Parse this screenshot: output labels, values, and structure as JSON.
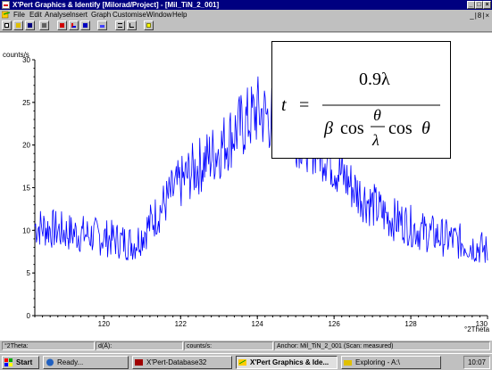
{
  "window": {
    "title": "X'Pert Graphics & Identify [Milorad/Project] - [Mil_TiN_2_001]",
    "controls": [
      "_",
      "□",
      "×"
    ]
  },
  "menu": {
    "items": [
      "File",
      "Edit",
      "Analyse",
      "Insert",
      "Graph",
      "Customise",
      "Window",
      "Help"
    ],
    "mdi_controls": "_|8|×"
  },
  "toolbar": {
    "buttons": [
      "new-icon",
      "open-icon",
      "save-icon",
      "print-icon",
      "peak-icon",
      "profile-icon",
      "alpha2-icon",
      "pattern-icon",
      "list-icon",
      "graph-icon",
      "help-icon"
    ]
  },
  "chart_data": {
    "type": "line",
    "ylabel": "counts/s",
    "xlabel": "°2Theta",
    "xlim": [
      118.2,
      130
    ],
    "ylim": [
      0,
      30
    ],
    "x_ticks": [
      "120",
      "122",
      "124",
      "126",
      "128",
      "130"
    ],
    "y_ticks": [
      "0",
      "5",
      "10",
      "15",
      "20",
      "25",
      "30"
    ],
    "series": [
      {
        "color": "#0000ff",
        "x": [
          118.2,
          118.6,
          119.0,
          119.4,
          119.8,
          120.2,
          120.6,
          120.8,
          121.0,
          121.4,
          121.8,
          122.2,
          122.6,
          123.0,
          123.4,
          123.8,
          124.0,
          124.2,
          124.6,
          125.0,
          125.4,
          125.8,
          126.2,
          126.6,
          127.0,
          127.4,
          127.8,
          128.2,
          128.6,
          129.0,
          129.4,
          129.8,
          130.0
        ],
        "y": [
          10.5,
          10.2,
          9.8,
          9.6,
          9.3,
          9.0,
          8.6,
          8.5,
          9.5,
          12.0,
          14.5,
          16.5,
          18.0,
          19.5,
          21.5,
          23.0,
          24.0,
          23.5,
          22.5,
          21.5,
          20.5,
          19.0,
          16.5,
          14.5,
          13.0,
          11.5,
          11.0,
          10.0,
          9.5,
          9.0,
          8.5,
          8.0,
          7.5
        ]
      }
    ]
  },
  "formula": {
    "lhs": "t",
    "equals": "=",
    "numerator": "0.9λ",
    "beta": "β",
    "cos1": "cos",
    "theta_num": "θ",
    "lambda_den": "λ",
    "cos2": "cos",
    "theta2": "θ"
  },
  "statusbar": {
    "panels": [
      "°2Theta:",
      "d(Å):",
      "counts/s:",
      "Anchor: Mil_TiN_2_001  (Scan: measured)"
    ]
  },
  "taskbar": {
    "start": "Start",
    "tasks": [
      "Ready...",
      "X'Pert-Database32",
      "X'Pert Graphics & Ide...",
      "Exploring - A:\\"
    ],
    "clock": "10:07"
  }
}
